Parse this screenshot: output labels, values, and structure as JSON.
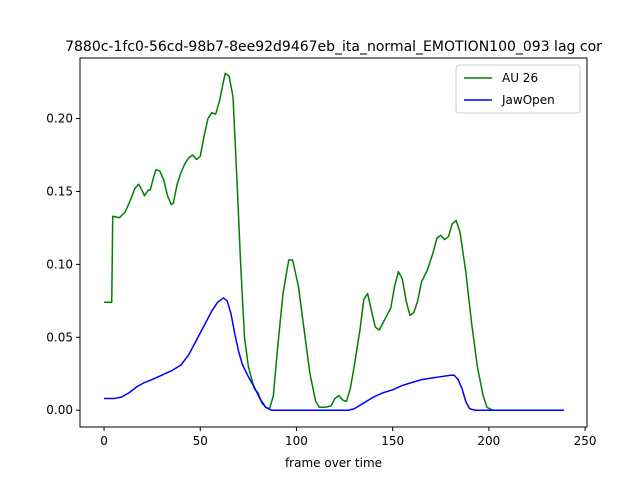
{
  "chart_data": {
    "type": "line",
    "title": "7880c-1fc0-56cd-98b7-8ee92d9467eb_ita_normal_EMOTION100_093  lag cor",
    "xlabel": "frame over time",
    "ylabel": "",
    "xlim": [
      -12.5,
      251
    ],
    "ylim": [
      -0.0115,
      0.2415
    ],
    "xticks": [
      0,
      50,
      100,
      150,
      200,
      250
    ],
    "yticks": [
      0.0,
      0.05,
      0.1,
      0.15,
      0.2
    ],
    "ytick_labels": [
      "0.00",
      "0.05",
      "0.10",
      "0.15",
      "0.20"
    ],
    "grid": false,
    "legend_position": "top-right",
    "series": [
      {
        "name": "AU 26",
        "color": "#008000",
        "points": [
          [
            0,
            0.074
          ],
          [
            4,
            0.074
          ],
          [
            4.5,
            0.133
          ],
          [
            8,
            0.132
          ],
          [
            11,
            0.136
          ],
          [
            14,
            0.145
          ],
          [
            16,
            0.152
          ],
          [
            18,
            0.155
          ],
          [
            20,
            0.15
          ],
          [
            21,
            0.147
          ],
          [
            23,
            0.151
          ],
          [
            24,
            0.151
          ],
          [
            26,
            0.161
          ],
          [
            27,
            0.165
          ],
          [
            29,
            0.164
          ],
          [
            31,
            0.158
          ],
          [
            33,
            0.147
          ],
          [
            35,
            0.141
          ],
          [
            36,
            0.142
          ],
          [
            38,
            0.155
          ],
          [
            40,
            0.163
          ],
          [
            42,
            0.169
          ],
          [
            44,
            0.173
          ],
          [
            46,
            0.175
          ],
          [
            48,
            0.172
          ],
          [
            50,
            0.174
          ],
          [
            52,
            0.188
          ],
          [
            54,
            0.2
          ],
          [
            56,
            0.204
          ],
          [
            58,
            0.203
          ],
          [
            60,
            0.212
          ],
          [
            62,
            0.225
          ],
          [
            63,
            0.231
          ],
          [
            65,
            0.229
          ],
          [
            67,
            0.215
          ],
          [
            69,
            0.16
          ],
          [
            71,
            0.1
          ],
          [
            73,
            0.05
          ],
          [
            75,
            0.03
          ],
          [
            78,
            0.015
          ],
          [
            80,
            0.012
          ],
          [
            82,
            0.005
          ],
          [
            84,
            0.002
          ],
          [
            86,
            0.001
          ],
          [
            88,
            0.01
          ],
          [
            90,
            0.04
          ],
          [
            93,
            0.08
          ],
          [
            96,
            0.103
          ],
          [
            98,
            0.103
          ],
          [
            101,
            0.085
          ],
          [
            104,
            0.055
          ],
          [
            107,
            0.025
          ],
          [
            110,
            0.006
          ],
          [
            112,
            0.002
          ],
          [
            115,
            0.002
          ],
          [
            118,
            0.003
          ],
          [
            120,
            0.008
          ],
          [
            122,
            0.01
          ],
          [
            124,
            0.007
          ],
          [
            126,
            0.006
          ],
          [
            128,
            0.015
          ],
          [
            130,
            0.03
          ],
          [
            133,
            0.055
          ],
          [
            135,
            0.076
          ],
          [
            137,
            0.08
          ],
          [
            139,
            0.068
          ],
          [
            141,
            0.057
          ],
          [
            143,
            0.055
          ],
          [
            145,
            0.06
          ],
          [
            147,
            0.065
          ],
          [
            149,
            0.07
          ],
          [
            151,
            0.085
          ],
          [
            153,
            0.095
          ],
          [
            155,
            0.09
          ],
          [
            157,
            0.075
          ],
          [
            159,
            0.065
          ],
          [
            161,
            0.067
          ],
          [
            163,
            0.075
          ],
          [
            165,
            0.088
          ],
          [
            168,
            0.096
          ],
          [
            171,
            0.108
          ],
          [
            173,
            0.118
          ],
          [
            175,
            0.12
          ],
          [
            177,
            0.117
          ],
          [
            179,
            0.119
          ],
          [
            181,
            0.128
          ],
          [
            183,
            0.13
          ],
          [
            185,
            0.122
          ],
          [
            188,
            0.095
          ],
          [
            191,
            0.06
          ],
          [
            194,
            0.03
          ],
          [
            197,
            0.01
          ],
          [
            199,
            0.002
          ],
          [
            202,
            0.0
          ],
          [
            220,
            0.0
          ],
          [
            239,
            0.0
          ]
        ]
      },
      {
        "name": "JawOpen",
        "color": "#0000ff",
        "points": [
          [
            0,
            0.008
          ],
          [
            5,
            0.008
          ],
          [
            9,
            0.009
          ],
          [
            13,
            0.012
          ],
          [
            17,
            0.016
          ],
          [
            21,
            0.019
          ],
          [
            25,
            0.021
          ],
          [
            30,
            0.024
          ],
          [
            35,
            0.027
          ],
          [
            40,
            0.031
          ],
          [
            44,
            0.038
          ],
          [
            48,
            0.048
          ],
          [
            52,
            0.058
          ],
          [
            56,
            0.068
          ],
          [
            59,
            0.074
          ],
          [
            62,
            0.077
          ],
          [
            64,
            0.075
          ],
          [
            66,
            0.066
          ],
          [
            68,
            0.052
          ],
          [
            70,
            0.04
          ],
          [
            72,
            0.031
          ],
          [
            75,
            0.023
          ],
          [
            78,
            0.016
          ],
          [
            81,
            0.008
          ],
          [
            84,
            0.002
          ],
          [
            87,
            0.0
          ],
          [
            100,
            0.0
          ],
          [
            115,
            0.0
          ],
          [
            127,
            0.0
          ],
          [
            130,
            0.001
          ],
          [
            135,
            0.005
          ],
          [
            140,
            0.009
          ],
          [
            145,
            0.012
          ],
          [
            150,
            0.014
          ],
          [
            155,
            0.017
          ],
          [
            160,
            0.019
          ],
          [
            165,
            0.021
          ],
          [
            170,
            0.022
          ],
          [
            175,
            0.023
          ],
          [
            180,
            0.024
          ],
          [
            182,
            0.024
          ],
          [
            184,
            0.021
          ],
          [
            186,
            0.015
          ],
          [
            188,
            0.006
          ],
          [
            190,
            0.001
          ],
          [
            193,
            0.0
          ],
          [
            200,
            0.0
          ],
          [
            239,
            0.0
          ]
        ]
      }
    ]
  }
}
